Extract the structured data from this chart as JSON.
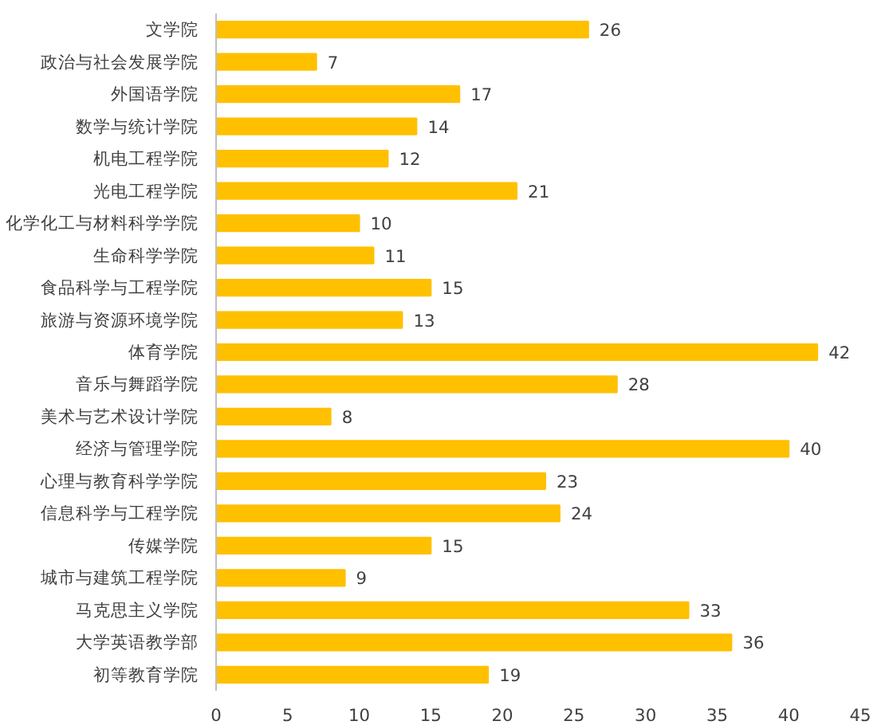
{
  "chart_data": {
    "type": "bar",
    "orientation": "horizontal",
    "categories": [
      "文学院",
      "政治与社会发展学院",
      "外国语学院",
      "数学与统计学院",
      "机电工程学院",
      "光电工程学院",
      "化学化工与材料科学学院",
      "生命科学学院",
      "食品科学与工程学院",
      "旅游与资源环境学院",
      "体育学院",
      "音乐与舞蹈学院",
      "美术与艺术设计学院",
      "经济与管理学院",
      "心理与教育科学学院",
      "信息科学与工程学院",
      "传媒学院",
      "城市与建筑工程学院",
      "马克思主义学院",
      "大学英语教学部",
      "初等教育学院"
    ],
    "values": [
      26,
      7,
      17,
      14,
      12,
      21,
      10,
      11,
      15,
      13,
      42,
      28,
      8,
      40,
      23,
      24,
      15,
      9,
      33,
      36,
      19
    ],
    "color": "#ffc000",
    "xlim": [
      0,
      45
    ],
    "xticks": [
      0,
      5,
      10,
      15,
      20,
      25,
      30,
      35,
      40,
      45
    ],
    "data_labels": true,
    "grid": false
  }
}
